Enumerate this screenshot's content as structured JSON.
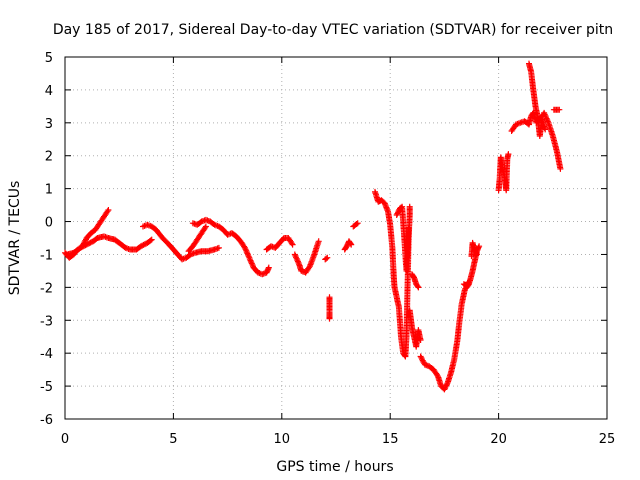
{
  "chart_data": {
    "type": "scatter",
    "title": "Day 185 of 2017, Sidereal Day-to-day VTEC variation (SDTVAR) for receiver pitn",
    "xlabel": "GPS time / hours",
    "ylabel": "SDTVAR / TECUs",
    "xlim": [
      0,
      25
    ],
    "ylim": [
      -6,
      5
    ],
    "xticks": [
      0,
      5,
      10,
      15,
      20,
      25
    ],
    "yticks": [
      -6,
      -5,
      -4,
      -3,
      -2,
      -1,
      0,
      1,
      2,
      3,
      4,
      5
    ],
    "grid": true,
    "legend": "none",
    "marker": "+",
    "series": [
      {
        "color": "#ff0000",
        "segments": [
          [
            [
              0.0,
              -0.95
            ],
            [
              0.2,
              -1.1
            ],
            [
              0.4,
              -1.0
            ],
            [
              0.6,
              -0.85
            ],
            [
              0.8,
              -0.75
            ],
            [
              1.0,
              -0.5
            ],
            [
              1.2,
              -0.35
            ],
            [
              1.4,
              -0.25
            ],
            [
              1.6,
              -0.05
            ],
            [
              1.8,
              0.15
            ],
            [
              2.0,
              0.35
            ]
          ],
          [
            [
              0.1,
              -1.0
            ],
            [
              0.4,
              -0.95
            ],
            [
              0.7,
              -0.8
            ],
            [
              1.0,
              -0.7
            ],
            [
              1.3,
              -0.6
            ],
            [
              1.5,
              -0.5
            ],
            [
              1.8,
              -0.45
            ],
            [
              2.0,
              -0.5
            ],
            [
              2.3,
              -0.55
            ],
            [
              2.6,
              -0.7
            ],
            [
              2.8,
              -0.8
            ],
            [
              3.0,
              -0.85
            ],
            [
              3.3,
              -0.85
            ],
            [
              3.5,
              -0.75
            ],
            [
              3.8,
              -0.65
            ],
            [
              4.0,
              -0.55
            ]
          ],
          [
            [
              3.6,
              -0.15
            ],
            [
              3.8,
              -0.1
            ],
            [
              4.0,
              -0.15
            ],
            [
              4.2,
              -0.25
            ],
            [
              4.5,
              -0.5
            ],
            [
              4.8,
              -0.7
            ],
            [
              5.0,
              -0.85
            ],
            [
              5.2,
              -1.0
            ],
            [
              5.4,
              -1.15
            ],
            [
              5.6,
              -1.1
            ],
            [
              5.8,
              -1.0
            ],
            [
              6.0,
              -0.95
            ],
            [
              6.3,
              -0.9
            ],
            [
              6.6,
              -0.9
            ],
            [
              6.9,
              -0.85
            ],
            [
              7.1,
              -0.8
            ]
          ],
          [
            [
              5.7,
              -0.9
            ],
            [
              5.9,
              -0.75
            ],
            [
              6.1,
              -0.55
            ],
            [
              6.3,
              -0.35
            ],
            [
              6.5,
              -0.15
            ]
          ],
          [
            [
              5.9,
              -0.05
            ],
            [
              6.1,
              -0.1
            ],
            [
              6.3,
              0.0
            ],
            [
              6.5,
              0.05
            ],
            [
              6.7,
              0.0
            ],
            [
              6.9,
              -0.1
            ],
            [
              7.1,
              -0.15
            ],
            [
              7.3,
              -0.25
            ],
            [
              7.5,
              -0.4
            ],
            [
              7.7,
              -0.35
            ],
            [
              7.9,
              -0.45
            ],
            [
              8.1,
              -0.6
            ],
            [
              8.3,
              -0.8
            ],
            [
              8.5,
              -1.1
            ],
            [
              8.7,
              -1.4
            ],
            [
              8.9,
              -1.55
            ],
            [
              9.1,
              -1.6
            ],
            [
              9.3,
              -1.55
            ],
            [
              9.4,
              -1.4
            ]
          ],
          [
            [
              9.3,
              -0.85
            ],
            [
              9.5,
              -0.75
            ],
            [
              9.7,
              -0.8
            ],
            [
              9.9,
              -0.65
            ],
            [
              10.1,
              -0.5
            ],
            [
              10.3,
              -0.5
            ],
            [
              10.5,
              -0.7
            ]
          ],
          [
            [
              10.6,
              -1.0
            ],
            [
              10.8,
              -1.3
            ],
            [
              10.9,
              -1.5
            ],
            [
              11.1,
              -1.55
            ],
            [
              11.3,
              -1.35
            ],
            [
              11.5,
              -1.0
            ],
            [
              11.7,
              -0.6
            ]
          ],
          [
            [
              12.0,
              -1.15
            ],
            [
              12.1,
              -1.1
            ]
          ],
          [
            [
              12.2,
              -2.3
            ],
            [
              12.2,
              -2.45
            ],
            [
              12.2,
              -2.8
            ],
            [
              12.2,
              -2.95
            ]
          ],
          [
            [
              12.9,
              -0.85
            ],
            [
              13.0,
              -0.75
            ],
            [
              13.1,
              -0.6
            ],
            [
              13.2,
              -0.7
            ]
          ],
          [
            [
              13.3,
              -0.15
            ],
            [
              13.5,
              -0.05
            ]
          ],
          [
            [
              14.3,
              0.9
            ],
            [
              14.45,
              0.6
            ],
            [
              14.6,
              0.65
            ],
            [
              14.75,
              0.55
            ],
            [
              14.9,
              0.3
            ],
            [
              15.0,
              -0.1
            ],
            [
              15.1,
              -0.8
            ],
            [
              15.15,
              -1.5
            ],
            [
              15.2,
              -2.0
            ],
            [
              15.3,
              -2.3
            ],
            [
              15.4,
              -2.6
            ],
            [
              15.5,
              -3.5
            ],
            [
              15.6,
              -4.0
            ],
            [
              15.7,
              -4.1
            ],
            [
              15.75,
              -3.5
            ],
            [
              15.8,
              -2.0
            ],
            [
              15.85,
              -0.5
            ],
            [
              15.9,
              0.2
            ],
            [
              15.9,
              0.45
            ]
          ],
          [
            [
              15.3,
              0.2
            ],
            [
              15.45,
              0.4
            ],
            [
              15.55,
              0.45
            ],
            [
              15.65,
              -0.5
            ],
            [
              15.75,
              -1.5
            ],
            [
              15.8,
              -1.0
            ],
            [
              15.85,
              -0.2
            ]
          ],
          [
            [
              15.9,
              -2.7
            ],
            [
              16.0,
              -3.2
            ],
            [
              16.1,
              -3.5
            ],
            [
              16.2,
              -3.8
            ],
            [
              16.3,
              -3.3
            ],
            [
              16.4,
              -3.6
            ]
          ],
          [
            [
              16.0,
              -1.6
            ],
            [
              16.1,
              -1.7
            ],
            [
              16.2,
              -1.9
            ],
            [
              16.3,
              -2.0
            ]
          ],
          [
            [
              16.4,
              -4.1
            ],
            [
              16.6,
              -4.35
            ],
            [
              16.8,
              -4.4
            ],
            [
              17.0,
              -4.5
            ],
            [
              17.2,
              -4.7
            ],
            [
              17.35,
              -5.0
            ],
            [
              17.5,
              -5.1
            ],
            [
              17.65,
              -4.9
            ],
            [
              17.8,
              -4.6
            ],
            [
              17.95,
              -4.2
            ],
            [
              18.1,
              -3.6
            ],
            [
              18.2,
              -3.0
            ],
            [
              18.3,
              -2.5
            ],
            [
              18.45,
              -2.05
            ],
            [
              18.6,
              -1.95
            ],
            [
              18.7,
              -1.75
            ],
            [
              18.8,
              -1.5
            ],
            [
              18.9,
              -1.2
            ],
            [
              19.0,
              -0.9
            ],
            [
              19.1,
              -0.75
            ]
          ],
          [
            [
              18.4,
              -1.9
            ],
            [
              18.5,
              -1.95
            ],
            [
              18.6,
              -1.85
            ]
          ],
          [
            [
              18.75,
              -1.05
            ],
            [
              18.8,
              -0.65
            ],
            [
              18.9,
              -0.85
            ],
            [
              19.0,
              -1.0
            ]
          ],
          [
            [
              20.0,
              0.95
            ],
            [
              20.05,
              1.3
            ],
            [
              20.1,
              1.95
            ],
            [
              20.2,
              1.6
            ],
            [
              20.3,
              1.25
            ],
            [
              20.35,
              0.95
            ],
            [
              20.4,
              1.9
            ],
            [
              20.45,
              2.05
            ]
          ],
          [
            [
              20.6,
              2.75
            ],
            [
              20.8,
              2.95
            ],
            [
              21.0,
              3.0
            ],
            [
              21.2,
              3.05
            ],
            [
              21.4,
              2.95
            ],
            [
              21.5,
              3.2
            ],
            [
              21.6,
              3.3
            ],
            [
              21.75,
              3.0
            ],
            [
              21.9,
              3.1
            ],
            [
              22.1,
              3.3
            ],
            [
              22.3,
              3.0
            ],
            [
              22.5,
              2.6
            ],
            [
              22.7,
              2.1
            ],
            [
              22.85,
              1.6
            ]
          ],
          [
            [
              21.4,
              4.8
            ],
            [
              21.5,
              4.55
            ],
            [
              21.6,
              4.0
            ],
            [
              21.7,
              3.5
            ],
            [
              21.8,
              3.2
            ],
            [
              21.9,
              2.6
            ],
            [
              22.0,
              3.1
            ],
            [
              22.15,
              2.8
            ]
          ],
          [
            [
              22.55,
              3.4
            ],
            [
              22.8,
              3.4
            ]
          ]
        ]
      }
    ]
  }
}
